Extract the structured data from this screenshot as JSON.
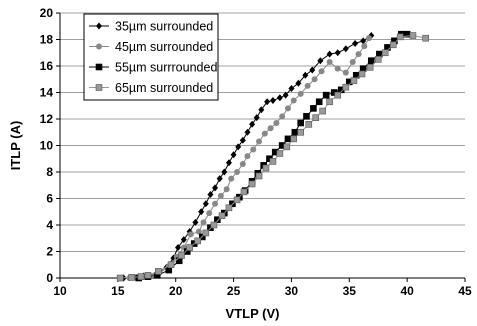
{
  "chart_data": {
    "type": "line",
    "title": "",
    "xlabel": "VTLP (V)",
    "ylabel": "ITLP (A)",
    "xlim": [
      10,
      45
    ],
    "ylim": [
      0,
      20
    ],
    "x_ticks": [
      10,
      15,
      20,
      25,
      30,
      35,
      40,
      45
    ],
    "y_ticks": [
      0,
      2,
      4,
      6,
      8,
      10,
      12,
      14,
      16,
      18,
      20
    ],
    "grid": "horizontal",
    "legend_position": "top-left",
    "series": [
      {
        "name": "35µm surrounded",
        "color": "#000000",
        "marker": "diamond",
        "points": [
          [
            15.5,
            0
          ],
          [
            16.3,
            0.05
          ],
          [
            16.8,
            0.1
          ],
          [
            17.2,
            0.15
          ],
          [
            17.6,
            0.2
          ],
          [
            18.4,
            0.3
          ],
          [
            19.2,
            0.8
          ],
          [
            19.8,
            1.5
          ],
          [
            20.2,
            2.3
          ],
          [
            20.7,
            2.9
          ],
          [
            21.2,
            3.5
          ],
          [
            21.7,
            4.2
          ],
          [
            22.2,
            5.0
          ],
          [
            22.6,
            5.6
          ],
          [
            23.0,
            6.3
          ],
          [
            23.4,
            6.8
          ],
          [
            23.8,
            7.5
          ],
          [
            24.2,
            8.0
          ],
          [
            24.6,
            8.7
          ],
          [
            25.0,
            9.3
          ],
          [
            25.4,
            9.9
          ],
          [
            25.8,
            10.4
          ],
          [
            26.2,
            11.0
          ],
          [
            26.6,
            11.6
          ],
          [
            27.0,
            12.1
          ],
          [
            27.4,
            12.7
          ],
          [
            27.9,
            13.3
          ],
          [
            28.4,
            13.4
          ],
          [
            29.0,
            13.6
          ],
          [
            29.5,
            13.8
          ],
          [
            30.0,
            14.3
          ],
          [
            30.6,
            14.7
          ],
          [
            31.2,
            15.3
          ],
          [
            31.8,
            15.7
          ],
          [
            32.5,
            16.4
          ],
          [
            33.3,
            16.9
          ],
          [
            34.0,
            17.0
          ],
          [
            34.7,
            17.3
          ],
          [
            35.5,
            17.7
          ],
          [
            36.2,
            17.9
          ],
          [
            36.9,
            18.3
          ]
        ]
      },
      {
        "name": "45µm surrounded",
        "color": "#888888",
        "marker": "circle",
        "points": [
          [
            16.0,
            0
          ],
          [
            16.6,
            0.05
          ],
          [
            17.1,
            0.1
          ],
          [
            17.6,
            0.2
          ],
          [
            18.5,
            0.3
          ],
          [
            19.4,
            0.9
          ],
          [
            20.1,
            1.6
          ],
          [
            20.7,
            2.3
          ],
          [
            21.3,
            3.3
          ],
          [
            22.0,
            3.5
          ],
          [
            22.4,
            4.2
          ],
          [
            22.9,
            4.9
          ],
          [
            23.4,
            5.6
          ],
          [
            23.9,
            6.2
          ],
          [
            24.4,
            6.7
          ],
          [
            24.8,
            7.5
          ],
          [
            25.3,
            8.0
          ],
          [
            25.8,
            8.6
          ],
          [
            26.2,
            9.2
          ],
          [
            26.7,
            9.7
          ],
          [
            27.2,
            10.3
          ],
          [
            27.7,
            10.9
          ],
          [
            28.2,
            11.3
          ],
          [
            28.7,
            11.7
          ],
          [
            29.2,
            12.2
          ],
          [
            29.7,
            12.8
          ],
          [
            30.2,
            13.4
          ],
          [
            30.8,
            13.9
          ],
          [
            31.4,
            14.5
          ],
          [
            32.0,
            15.0
          ],
          [
            32.6,
            15.6
          ],
          [
            33.3,
            16.3
          ],
          [
            34.0,
            15.8
          ],
          [
            34.7,
            15.5
          ],
          [
            35.3,
            16.3
          ],
          [
            35.8,
            16.9
          ],
          [
            36.3,
            17.5
          ],
          [
            36.7,
            18.1
          ]
        ]
      },
      {
        "name": "55µm surrrounded",
        "color": "#000000",
        "marker": "square",
        "points": [
          [
            16.8,
            0
          ],
          [
            17.6,
            0.1
          ],
          [
            18.4,
            0.2
          ],
          [
            19.4,
            0.6
          ],
          [
            20.3,
            1.3
          ],
          [
            21.0,
            2.0
          ],
          [
            21.6,
            2.6
          ],
          [
            22.3,
            3.1
          ],
          [
            23.0,
            3.8
          ],
          [
            23.6,
            4.4
          ],
          [
            24.2,
            4.9
          ],
          [
            24.9,
            5.6
          ],
          [
            25.5,
            6.1
          ],
          [
            26.0,
            6.6
          ],
          [
            26.6,
            7.3
          ],
          [
            27.1,
            7.9
          ],
          [
            27.6,
            8.5
          ],
          [
            28.1,
            9.0
          ],
          [
            28.6,
            9.5
          ],
          [
            29.2,
            10.0
          ],
          [
            29.7,
            10.5
          ],
          [
            30.3,
            11.0
          ],
          [
            30.8,
            11.7
          ],
          [
            31.3,
            12.2
          ],
          [
            31.9,
            12.8
          ],
          [
            32.4,
            13.3
          ],
          [
            33.0,
            13.8
          ],
          [
            33.7,
            14.0
          ],
          [
            34.3,
            14.2
          ],
          [
            35.0,
            14.8
          ],
          [
            35.6,
            15.3
          ],
          [
            36.2,
            15.8
          ],
          [
            36.9,
            16.4
          ],
          [
            37.6,
            16.9
          ],
          [
            38.3,
            17.4
          ],
          [
            38.9,
            17.9
          ],
          [
            39.5,
            18.4
          ],
          [
            40.0,
            18.4
          ]
        ]
      },
      {
        "name": "65µm surrounded",
        "color": "#999999",
        "marker": "square",
        "points": [
          [
            15.2,
            0
          ],
          [
            16.2,
            0.05
          ],
          [
            17.0,
            0.1
          ],
          [
            17.6,
            0.2
          ],
          [
            18.5,
            0.5
          ],
          [
            19.6,
            1.0
          ],
          [
            20.5,
            1.7
          ],
          [
            21.2,
            2.3
          ],
          [
            21.9,
            2.8
          ],
          [
            22.6,
            3.4
          ],
          [
            23.3,
            4.0
          ],
          [
            24.0,
            4.7
          ],
          [
            24.6,
            5.3
          ],
          [
            25.3,
            5.9
          ],
          [
            25.9,
            6.5
          ],
          [
            26.6,
            7.1
          ],
          [
            27.2,
            7.7
          ],
          [
            27.8,
            8.3
          ],
          [
            28.4,
            8.8
          ],
          [
            29.0,
            9.4
          ],
          [
            29.6,
            9.9
          ],
          [
            30.2,
            10.5
          ],
          [
            30.8,
            11.0
          ],
          [
            31.5,
            11.6
          ],
          [
            32.1,
            12.1
          ],
          [
            32.7,
            12.6
          ],
          [
            33.3,
            13.3
          ],
          [
            34.0,
            13.8
          ],
          [
            34.7,
            14.4
          ],
          [
            35.4,
            14.9
          ],
          [
            36.1,
            15.4
          ],
          [
            36.8,
            15.9
          ],
          [
            37.5,
            16.5
          ],
          [
            38.1,
            17.0
          ],
          [
            38.8,
            17.6
          ],
          [
            39.4,
            18.2
          ],
          [
            40.5,
            18.3
          ],
          [
            41.6,
            18.1
          ]
        ]
      }
    ]
  }
}
